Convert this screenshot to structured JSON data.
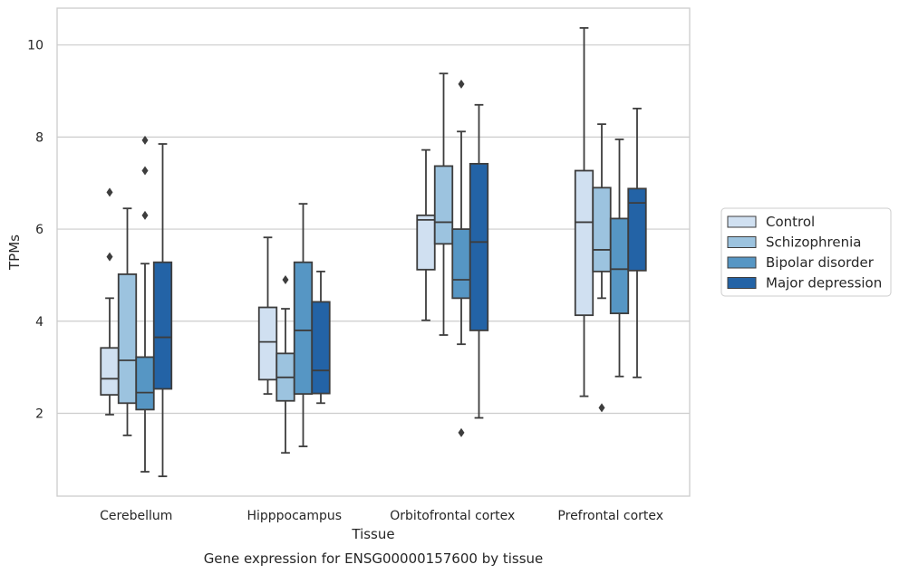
{
  "chart_data": {
    "type": "boxplot",
    "title": "",
    "caption": "Gene expression for ENSG00000157600 by tissue",
    "xlabel": "Tissue",
    "ylabel": "TPMs",
    "ylim": [
      0.2,
      10.8
    ],
    "yticks": [
      2,
      4,
      6,
      8,
      10
    ],
    "grid": true,
    "legend_position": "right, outside plot",
    "categories": [
      "Cerebellum",
      "Hipppocampus",
      "Orbitofrontal cortex",
      "Prefrontal cortex"
    ],
    "series": [
      {
        "name": "Control",
        "color": "#d0e0f1",
        "boxes": [
          {
            "whislo": 1.97,
            "q1": 2.4,
            "med": 2.75,
            "q3": 3.42,
            "whishi": 4.5,
            "fliers": [
              5.4,
              6.8
            ]
          },
          {
            "whislo": 2.42,
            "q1": 2.73,
            "med": 3.55,
            "q3": 4.3,
            "whishi": 5.82,
            "fliers": []
          },
          {
            "whislo": 4.02,
            "q1": 5.12,
            "med": 6.2,
            "q3": 6.3,
            "whishi": 7.72,
            "fliers": []
          },
          {
            "whislo": 2.37,
            "q1": 4.13,
            "med": 6.15,
            "q3": 7.27,
            "whishi": 10.37,
            "fliers": []
          }
        ]
      },
      {
        "name": "Schizophrenia",
        "color": "#9cc3df",
        "boxes": [
          {
            "whislo": 1.52,
            "q1": 2.22,
            "med": 3.15,
            "q3": 5.02,
            "whishi": 6.45,
            "fliers": []
          },
          {
            "whislo": 1.14,
            "q1": 2.27,
            "med": 2.78,
            "q3": 3.3,
            "whishi": 4.27,
            "fliers": [
              4.9
            ]
          },
          {
            "whislo": 3.7,
            "q1": 5.68,
            "med": 6.15,
            "q3": 7.37,
            "whishi": 9.38,
            "fliers": []
          },
          {
            "whislo": 4.5,
            "q1": 5.08,
            "med": 5.55,
            "q3": 6.9,
            "whishi": 8.28,
            "fliers": [
              2.12
            ]
          }
        ]
      },
      {
        "name": "Bipolar disorder",
        "color": "#5696c4",
        "boxes": [
          {
            "whislo": 0.73,
            "q1": 2.08,
            "med": 2.45,
            "q3": 3.22,
            "whishi": 5.25,
            "fliers": [
              6.3,
              7.27,
              7.93
            ]
          },
          {
            "whislo": 1.28,
            "q1": 2.42,
            "med": 3.8,
            "q3": 5.28,
            "whishi": 6.55,
            "fliers": []
          },
          {
            "whislo": 3.5,
            "q1": 4.5,
            "med": 4.9,
            "q3": 6.0,
            "whishi": 8.12,
            "fliers": [
              1.58,
              9.15
            ]
          },
          {
            "whislo": 2.8,
            "q1": 4.17,
            "med": 5.13,
            "q3": 6.23,
            "whishi": 7.95,
            "fliers": []
          }
        ]
      },
      {
        "name": "Major depression",
        "color": "#2363a6",
        "boxes": [
          {
            "whislo": 0.63,
            "q1": 2.53,
            "med": 3.65,
            "q3": 5.28,
            "whishi": 7.85,
            "fliers": []
          },
          {
            "whislo": 2.22,
            "q1": 2.43,
            "med": 2.93,
            "q3": 4.42,
            "whishi": 5.08,
            "fliers": []
          },
          {
            "whislo": 1.9,
            "q1": 3.8,
            "med": 5.72,
            "q3": 7.42,
            "whishi": 8.7,
            "fliers": []
          },
          {
            "whislo": 2.78,
            "q1": 5.1,
            "med": 6.57,
            "q3": 6.88,
            "whishi": 8.62,
            "fliers": []
          }
        ]
      }
    ]
  }
}
